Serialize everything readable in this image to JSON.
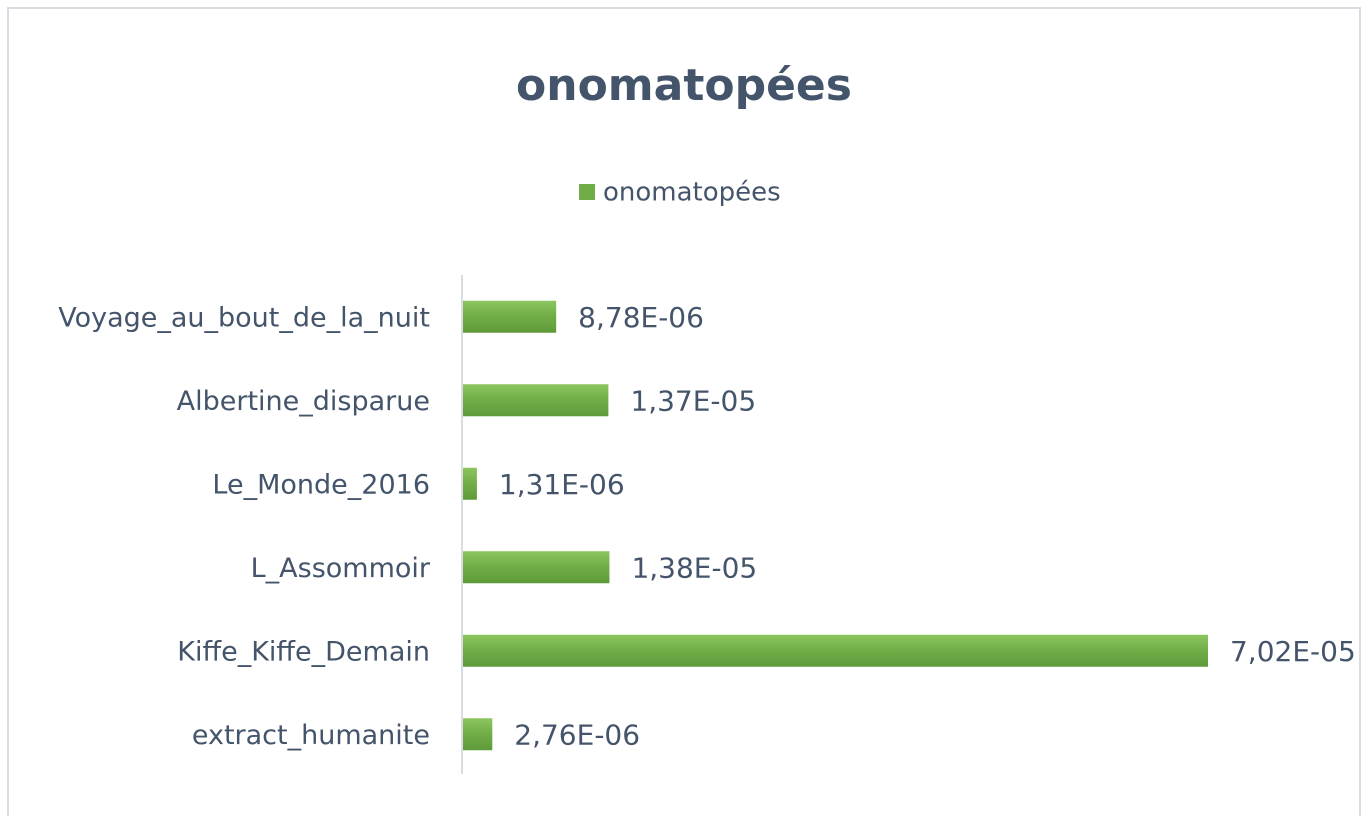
{
  "chart_data": {
    "type": "bar",
    "orientation": "horizontal",
    "title": "onomatopées",
    "categories": [
      "Voyage_au_bout_de_la_nuit",
      "Albertine_disparue",
      "Le_Monde_2016",
      "L_Assommoir",
      "Kiffe_Kiffe_Demain",
      "extract_humanite"
    ],
    "series": [
      {
        "name": "onomatopées",
        "color": "#70ad47",
        "values": [
          8.78e-06,
          1.37e-05,
          1.31e-06,
          1.38e-05,
          7.02e-05,
          2.76e-06
        ],
        "value_labels": [
          "8,78E-06",
          "1,37E-05",
          "1,31E-06",
          "1,38E-05",
          "7,02E-05",
          "2,76E-06"
        ]
      }
    ],
    "xlim": [
      0,
      8e-05
    ],
    "legend": "top"
  }
}
